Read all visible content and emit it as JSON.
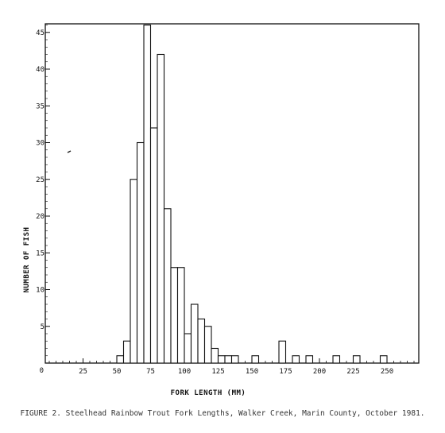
{
  "chart_data": {
    "type": "bar",
    "xlabel": "FORK LENGTH (MM)",
    "ylabel": "NUMBER OF FISH",
    "xlim": [
      0,
      275
    ],
    "ylim": [
      0,
      48
    ],
    "bin_width": 5,
    "x_ticks": [
      {
        "value": 25,
        "label": "25"
      },
      {
        "value": 50,
        "label": "50"
      },
      {
        "value": 75,
        "label": "75"
      },
      {
        "value": 100,
        "label": "100"
      },
      {
        "value": 125,
        "label": "125"
      },
      {
        "value": 150,
        "label": "150"
      },
      {
        "value": 175,
        "label": "175"
      },
      {
        "value": 200,
        "label": "200"
      },
      {
        "value": 225,
        "label": "225"
      },
      {
        "value": 250,
        "label": "250"
      }
    ],
    "y_ticks": [
      {
        "value": 0,
        "label": "0"
      },
      {
        "value": 5,
        "label": "5"
      },
      {
        "value": 10,
        "label": "10"
      },
      {
        "value": 15,
        "label": "15"
      },
      {
        "value": 20,
        "label": "20"
      },
      {
        "value": 25,
        "label": "25"
      },
      {
        "value": 30,
        "label": "30"
      },
      {
        "value": 35,
        "label": "35"
      },
      {
        "value": 40,
        "label": "40"
      },
      {
        "value": 45,
        "label": "45"
      }
    ],
    "bins": [
      {
        "x": 50,
        "count": 1
      },
      {
        "x": 55,
        "count": 3
      },
      {
        "x": 60,
        "count": 25
      },
      {
        "x": 65,
        "count": 30
      },
      {
        "x": 70,
        "count": 46
      },
      {
        "x": 75,
        "count": 32
      },
      {
        "x": 80,
        "count": 42
      },
      {
        "x": 85,
        "count": 21
      },
      {
        "x": 90,
        "count": 13
      },
      {
        "x": 95,
        "count": 13
      },
      {
        "x": 100,
        "count": 4
      },
      {
        "x": 105,
        "count": 8
      },
      {
        "x": 110,
        "count": 6
      },
      {
        "x": 115,
        "count": 5
      },
      {
        "x": 120,
        "count": 2
      },
      {
        "x": 125,
        "count": 1
      },
      {
        "x": 130,
        "count": 1
      },
      {
        "x": 135,
        "count": 1
      },
      {
        "x": 150,
        "count": 1
      },
      {
        "x": 170,
        "count": 3
      },
      {
        "x": 180,
        "count": 1
      },
      {
        "x": 190,
        "count": 1
      },
      {
        "x": 210,
        "count": 1
      },
      {
        "x": 225,
        "count": 1
      },
      {
        "x": 245,
        "count": 1
      }
    ],
    "grid": false,
    "minor_x_ticks_every": 5,
    "minor_y_ticks_every": 1
  },
  "caption": "FIGURE 2. Steelhead Rainbow Trout Fork Lengths, Walker Creek, Marin County, October 1981."
}
